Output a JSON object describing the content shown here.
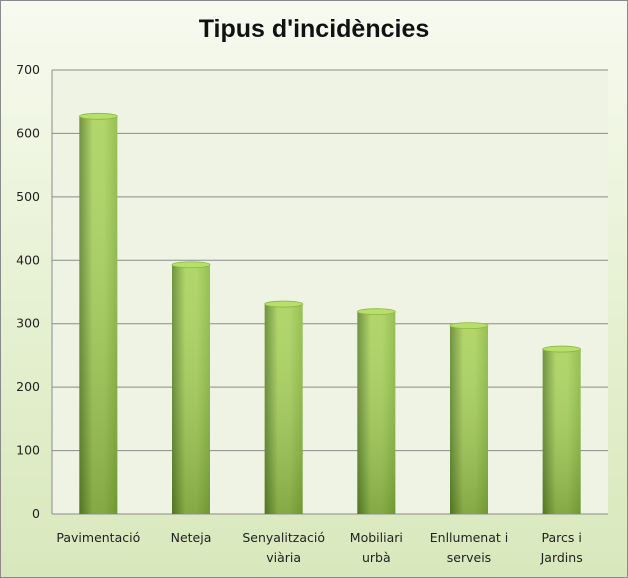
{
  "chart_data": {
    "type": "bar",
    "title": "Tipus d'incidències",
    "categories": [
      [
        "Pavimentació"
      ],
      [
        "Neteja"
      ],
      [
        "Senyalització",
        "viària"
      ],
      [
        "Mobiliari",
        "urbà"
      ],
      [
        "Enllumenat i",
        "serveis"
      ],
      [
        "Parcs i",
        "Jardins"
      ]
    ],
    "values": [
      627,
      393,
      331,
      319,
      297,
      260
    ],
    "ylim": [
      0,
      700
    ],
    "yticks": [
      0,
      100,
      200,
      300,
      400,
      500,
      600,
      700
    ],
    "grid": true,
    "legend": "none",
    "colors": {
      "bar_light": "#a9d15a",
      "bar_mid": "#8ab83f",
      "bar_dark": "#5f862a",
      "bar_top": "#b8de6c",
      "grid": "#8c8c8c",
      "plot_bg": "#eef3e3"
    }
  }
}
